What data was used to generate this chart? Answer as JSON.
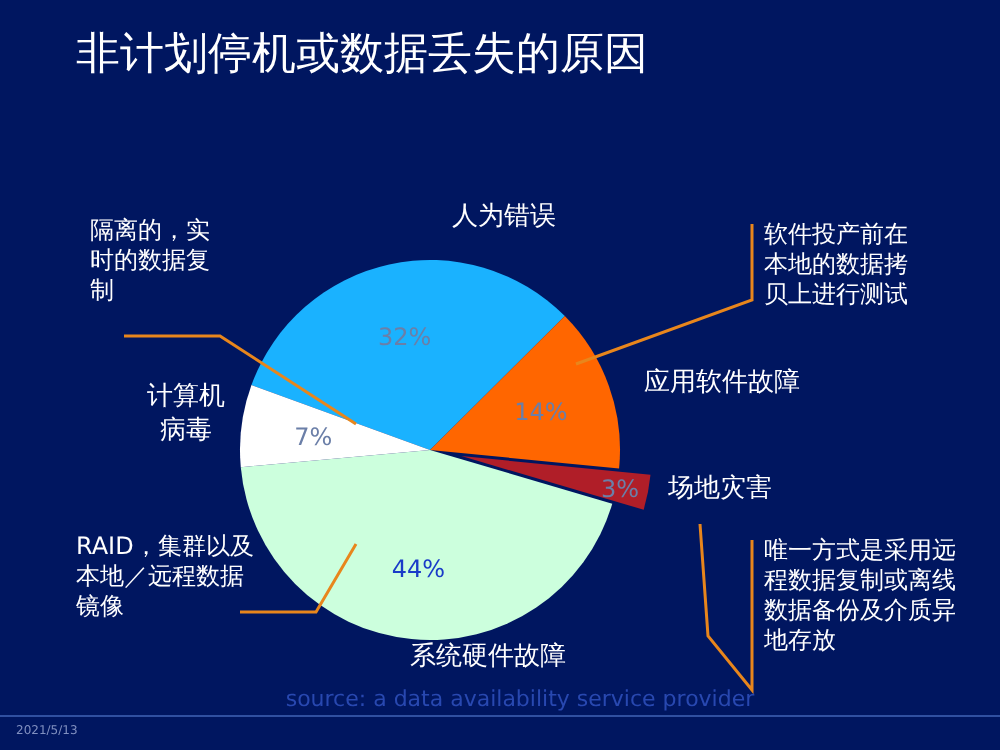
{
  "chart_data": {
    "type": "pie",
    "title": "非计划停机或数据丢失的原因",
    "categories": [
      "人为错误",
      "应用软件故障",
      "场地灾害",
      "系统硬件故障",
      "计算机病毒"
    ],
    "values": [
      32,
      14,
      3,
      44,
      7
    ],
    "value_labels": [
      "32%",
      "14%",
      "3%",
      "44%",
      "7%"
    ],
    "colors": [
      "#1ab2ff",
      "#ff6600",
      "#b01e28",
      "#ccffdd",
      "#ffffff"
    ],
    "annotations": [
      "隔离的，实时的数据复制",
      "软件投产前在本地的数据拷贝上进行测试",
      "唯一方式是采用远程数据复制或离线数据备份及介质异地存放",
      "RAID，集群以及本地／远程数据镜像",
      "source: a data availability service provider",
      "2021/5/13"
    ]
  }
}
